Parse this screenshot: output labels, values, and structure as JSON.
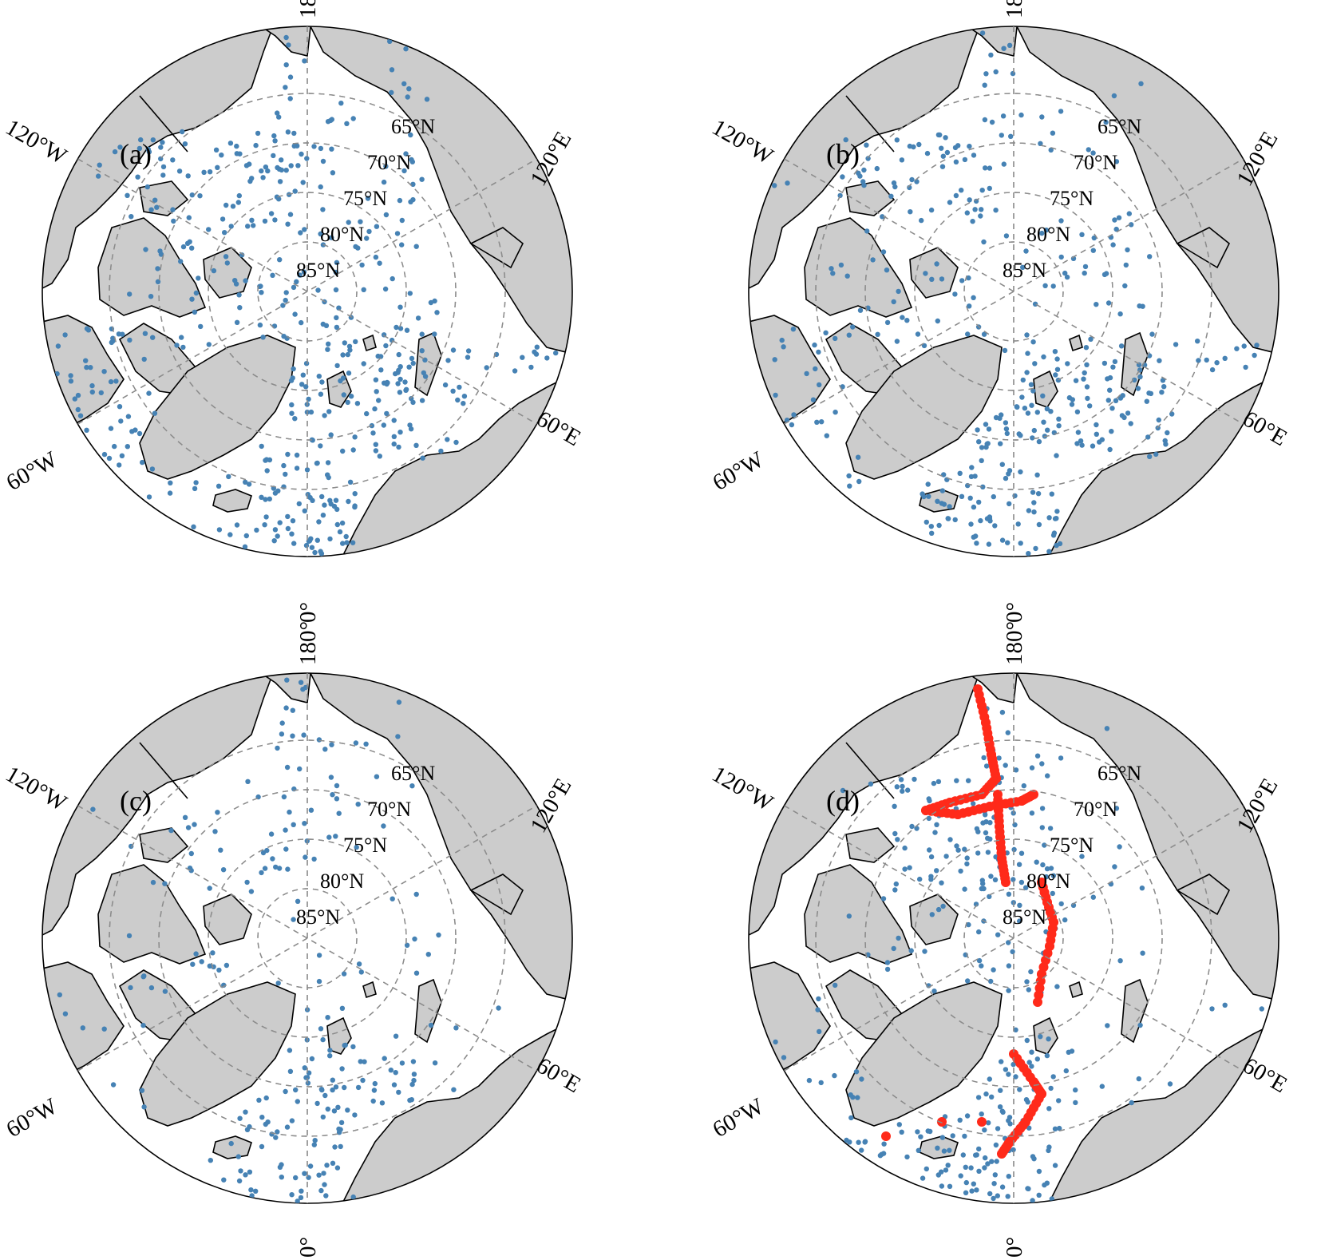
{
  "panels": [
    {
      "tag": "(a)",
      "pattern": "dense-cold-season"
    },
    {
      "tag": "(b)",
      "pattern": "atlantic-dominant"
    },
    {
      "tag": "(c)",
      "pattern": "sparse"
    },
    {
      "tag": "(d)",
      "pattern": "buoy-tracks"
    }
  ],
  "meridian_labels": {
    "lon_180": "180°",
    "lon_120e": "120°E",
    "lon_120w": "120°W",
    "lon_60e": "60°E",
    "lon_60w": "60°W",
    "lon_0": "0°"
  },
  "parallel_labels": [
    "65°N",
    "70°N",
    "75°N",
    "80°N",
    "85°N"
  ],
  "colors": {
    "ocean": "#ffffff",
    "land": "#cccccc",
    "coastline": "#000000",
    "observations": "#4682b4",
    "highlight_track": "#ff2a1a",
    "graticule": "#8c8c8c"
  },
  "icons": {
    "land": "land-polygon",
    "observation": "dot-marker",
    "track": "red-dot-marker"
  }
}
